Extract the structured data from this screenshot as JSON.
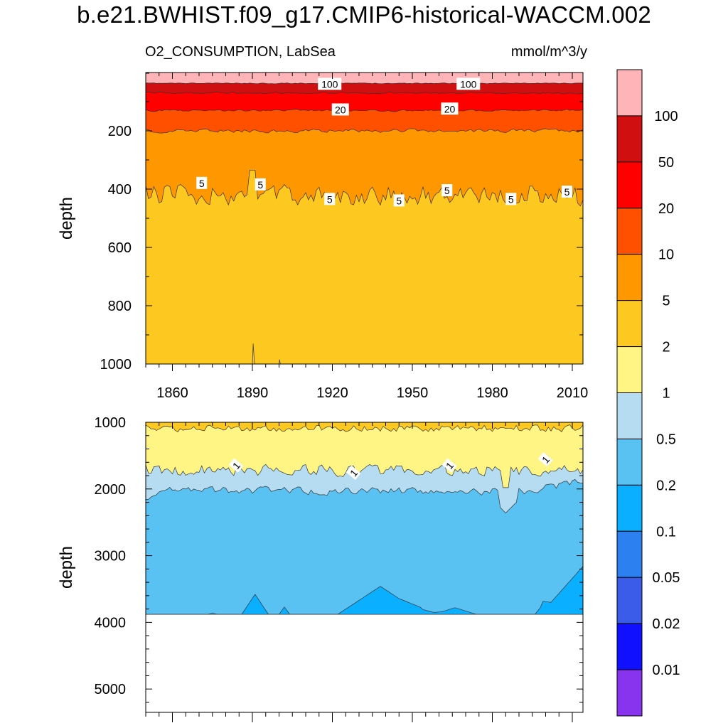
{
  "chart_data": [
    {
      "type": "area",
      "title": "b.e21.BWHIST.f09_g17.CMIP6-historical-WACCM.002",
      "left_label": "O2_CONSUMPTION, LabSea",
      "right_label": "mmol/m^3/y",
      "xlabel": "",
      "ylabel": "depth",
      "xlim": [
        1850,
        2014
      ],
      "ylim": [
        1000,
        0
      ],
      "x_ticks": [
        1860,
        1890,
        1920,
        1950,
        1980,
        2010
      ],
      "y_ticks": [
        200,
        400,
        600,
        800,
        1000
      ],
      "level_boundaries_depth": [
        {
          "level": "100",
          "depth_range": [
            35,
            40
          ]
        },
        {
          "level": "50",
          "depth_range": [
            65,
            75
          ]
        },
        {
          "level": "20",
          "depth_range": [
            125,
            135
          ]
        },
        {
          "level": "10",
          "depth_range": [
            195,
            215
          ]
        },
        {
          "level": "5",
          "depth_range": [
            340,
            480
          ]
        }
      ],
      "contour_labels": [
        {
          "text": "100",
          "x": 1919,
          "y": 40
        },
        {
          "text": "100",
          "x": 1971,
          "y": 40
        },
        {
          "text": "20",
          "x": 1923,
          "y": 128
        },
        {
          "text": "20",
          "x": 1964,
          "y": 125
        },
        {
          "text": "5",
          "x": 1871,
          "y": 380
        },
        {
          "text": "5",
          "x": 1893,
          "y": 385
        },
        {
          "text": "5",
          "x": 1919,
          "y": 435
        },
        {
          "text": "5",
          "x": 1945,
          "y": 440
        },
        {
          "text": "5",
          "x": 1963,
          "y": 405
        },
        {
          "text": "5",
          "x": 1987,
          "y": 435
        },
        {
          "text": "5",
          "x": 2008,
          "y": 410
        }
      ]
    },
    {
      "type": "area",
      "xlabel": "",
      "ylabel": "depth",
      "xlim": [
        1850,
        2014
      ],
      "ylim": [
        5350,
        1000
      ],
      "y_ticks": [
        1000,
        2000,
        3000,
        4000,
        5000
      ],
      "bottom_depth": 3880,
      "level_boundaries_depth": [
        {
          "level": "2",
          "depth_range": [
            1000,
            1200
          ]
        },
        {
          "level": "1",
          "depth_range": [
            1450,
            1900
          ]
        },
        {
          "level": "0.5",
          "depth_range": [
            1850,
            2400
          ]
        },
        {
          "level": "0.2",
          "depth_range": [
            3150,
            3880
          ]
        }
      ],
      "contour_labels": [
        {
          "text": "1",
          "x": 1884,
          "y": 1650
        },
        {
          "text": "1",
          "x": 1928,
          "y": 1760
        },
        {
          "text": "1",
          "x": 1964,
          "y": 1650
        },
        {
          "text": "1",
          "x": 2000,
          "y": 1560
        }
      ]
    },
    {
      "type": "colorbar",
      "levels": [
        "0.01",
        "0.02",
        "0.05",
        "0.1",
        "0.2",
        "0.5",
        "1",
        "2",
        "5",
        "10",
        "20",
        "50",
        "100"
      ],
      "colors": [
        "#ffb4b8",
        "#d01010",
        "#ff0000",
        "#ff5000",
        "#ff9800",
        "#fdc820",
        "#fff585",
        "#b6dcf2",
        "#5ac2f2",
        "#0ab0ff",
        "#2c80f0",
        "#3a5ce8",
        "#1010ff",
        "#8833ee"
      ]
    }
  ]
}
